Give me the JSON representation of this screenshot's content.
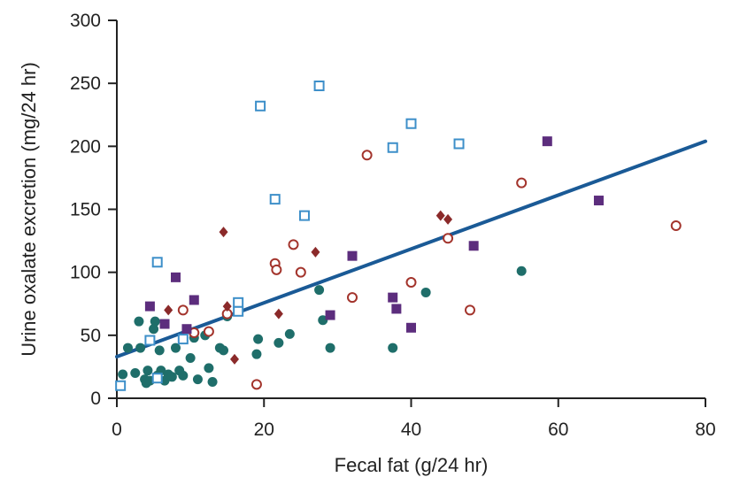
{
  "chart_data": {
    "type": "scatter",
    "title": "",
    "xlabel": "Fecal fat (g/24 hr)",
    "ylabel": "Urine oxalate excretion (mg/24 hr)",
    "xlim": [
      0,
      80
    ],
    "ylim": [
      0,
      300
    ],
    "xticks": [
      0,
      20,
      40,
      60,
      80
    ],
    "yticks": [
      0,
      50,
      100,
      150,
      200,
      250,
      300
    ],
    "grid": false,
    "series": [
      {
        "marker": "filled-circle",
        "color": "#1f6e6a",
        "points": [
          [
            0.8,
            19
          ],
          [
            1.5,
            40
          ],
          [
            2.5,
            20
          ],
          [
            3,
            61
          ],
          [
            3.2,
            40
          ],
          [
            3.8,
            15
          ],
          [
            4,
            12
          ],
          [
            4.2,
            22
          ],
          [
            4.5,
            14
          ],
          [
            5,
            55
          ],
          [
            5.2,
            61
          ],
          [
            5.5,
            18
          ],
          [
            5.8,
            38
          ],
          [
            6,
            22
          ],
          [
            6.5,
            14
          ],
          [
            7,
            19
          ],
          [
            7.5,
            17
          ],
          [
            8,
            40
          ],
          [
            8.5,
            22
          ],
          [
            9,
            18
          ],
          [
            10,
            32
          ],
          [
            10.5,
            48
          ],
          [
            11,
            15
          ],
          [
            12,
            50
          ],
          [
            12.5,
            24
          ],
          [
            13,
            13
          ],
          [
            14,
            40
          ],
          [
            14.5,
            38
          ],
          [
            15,
            65
          ],
          [
            19,
            35
          ],
          [
            19.2,
            47
          ],
          [
            22,
            44
          ],
          [
            23.5,
            51
          ],
          [
            27.5,
            86
          ],
          [
            28,
            62
          ],
          [
            29,
            40
          ],
          [
            37.5,
            40
          ],
          [
            42,
            84
          ],
          [
            55,
            101
          ]
        ]
      },
      {
        "marker": "open-circle",
        "color": "#a3342c",
        "points": [
          [
            9,
            70
          ],
          [
            10.5,
            52
          ],
          [
            12.5,
            53
          ],
          [
            15,
            67
          ],
          [
            19,
            11
          ],
          [
            21.5,
            107
          ],
          [
            21.7,
            102
          ],
          [
            24,
            122
          ],
          [
            25,
            100
          ],
          [
            32,
            80
          ],
          [
            34,
            193
          ],
          [
            40,
            92
          ],
          [
            45,
            127
          ],
          [
            48,
            70
          ],
          [
            55,
            171
          ],
          [
            76,
            137
          ]
        ]
      },
      {
        "marker": "filled-diamond",
        "color": "#8b2a2a",
        "points": [
          [
            7,
            70
          ],
          [
            14.5,
            132
          ],
          [
            15,
            73
          ],
          [
            16,
            31
          ],
          [
            22,
            67
          ],
          [
            27,
            116
          ],
          [
            44,
            145
          ],
          [
            45,
            142
          ]
        ]
      },
      {
        "marker": "filled-square",
        "color": "#5c2d7d",
        "points": [
          [
            4.5,
            73
          ],
          [
            6.5,
            59
          ],
          [
            8,
            96
          ],
          [
            9,
            47
          ],
          [
            9.5,
            55
          ],
          [
            10.5,
            78
          ],
          [
            32,
            113
          ],
          [
            37.5,
            80
          ],
          [
            38,
            71
          ],
          [
            40,
            56
          ],
          [
            29,
            66
          ],
          [
            48.5,
            121
          ],
          [
            58.5,
            204
          ],
          [
            65.5,
            157
          ]
        ]
      },
      {
        "marker": "open-square",
        "color": "#3d8fc9",
        "points": [
          [
            0.5,
            10
          ],
          [
            4.5,
            46
          ],
          [
            5.5,
            16
          ],
          [
            5.5,
            108
          ],
          [
            9,
            47
          ],
          [
            16.5,
            76
          ],
          [
            16.5,
            69
          ],
          [
            19.5,
            232
          ],
          [
            21.5,
            158
          ],
          [
            25.5,
            145
          ],
          [
            27.5,
            248
          ],
          [
            37.5,
            199
          ],
          [
            40,
            218
          ],
          [
            46.5,
            202
          ]
        ]
      }
    ],
    "trendline": {
      "type": "linear",
      "color": "#1a5a96",
      "x": [
        0,
        80
      ],
      "y": [
        33,
        204
      ]
    }
  }
}
